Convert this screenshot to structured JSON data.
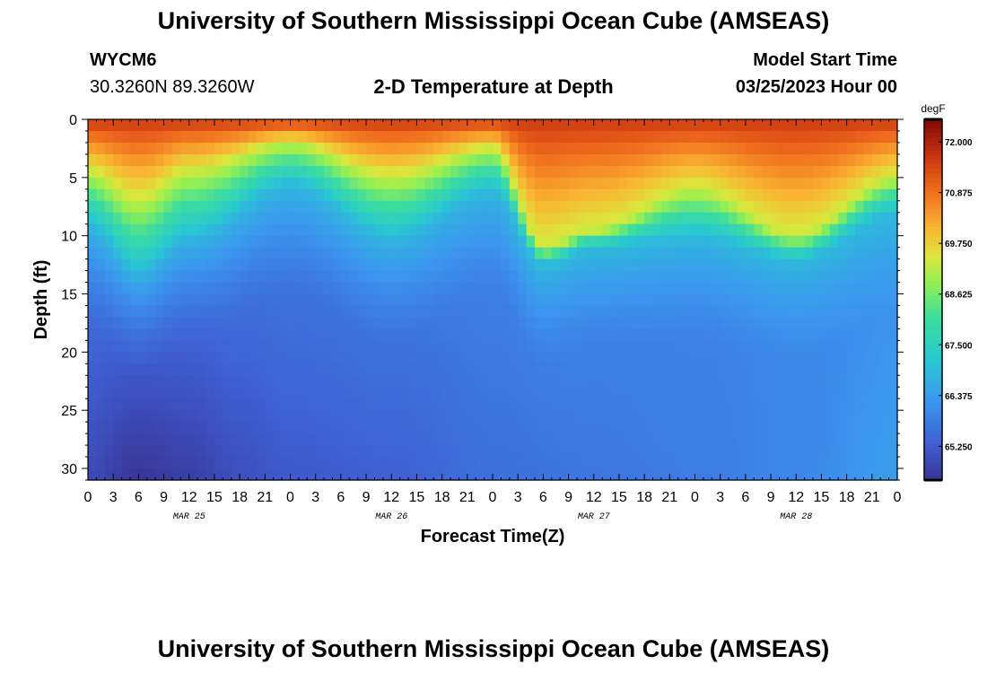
{
  "header": {
    "title": "University of Southern Mississippi Ocean Cube (AMSEAS)",
    "station_id": "WYCM6",
    "coordinates": "30.3260N  89.3260W",
    "plot_title": "2-D Temperature at Depth",
    "model_start_label": "Model Start Time",
    "model_start_value": "03/25/2023 Hour 00"
  },
  "footer": {
    "title": "University of Southern Mississippi Ocean Cube (AMSEAS)"
  },
  "colors": {
    "background": "#ffffff",
    "axis": "#000000"
  },
  "chart_data": {
    "type": "heatmap",
    "title": "2-D Temperature at Depth",
    "xlabel": "Forecast Time(Z)",
    "ylabel": "Depth (ft)",
    "x_range_hours": [
      0,
      96
    ],
    "x_tick_step_hours": 3,
    "x_tick_labels": [
      "0",
      "3",
      "6",
      "9",
      "12",
      "15",
      "18",
      "21",
      "0",
      "3",
      "6",
      "9",
      "12",
      "15",
      "18",
      "21",
      "0",
      "3",
      "6",
      "9",
      "12",
      "15",
      "18",
      "21",
      "0",
      "3",
      "6",
      "9",
      "12",
      "15",
      "18",
      "21",
      "0"
    ],
    "day_labels": [
      {
        "text": "MAR 25",
        "hour": 12
      },
      {
        "text": "MAR 26",
        "hour": 36
      },
      {
        "text": "MAR 27",
        "hour": 60
      },
      {
        "text": "MAR 28",
        "hour": 84
      }
    ],
    "y_range_ft": [
      0,
      31
    ],
    "y_ticks": [
      0,
      5,
      10,
      15,
      20,
      25,
      30
    ],
    "y_tick_labels": [
      "0",
      "5",
      "10",
      "15",
      "20",
      "25",
      "30"
    ],
    "colorbar": {
      "unit": "degF",
      "min": 64.5,
      "max": 72.5,
      "ticks": [
        72.0,
        70.875,
        69.75,
        68.625,
        67.5,
        66.375,
        65.25
      ],
      "tick_labels": [
        "72.000",
        "70.875",
        "69.750",
        "68.625",
        "67.500",
        "66.375",
        "65.250"
      ]
    },
    "thermocline_control": {
      "hours": [
        0,
        6,
        12,
        24,
        36,
        48,
        54,
        60,
        72,
        84,
        96
      ],
      "upper_warm_depth_ft": [
        4.5,
        7.0,
        4.5,
        2.0,
        5.0,
        2.5,
        11.0,
        9.5,
        6.0,
        10.0,
        5.0
      ],
      "mid_depth_ft": [
        9.0,
        13.0,
        10.0,
        5.5,
        10.0,
        6.0,
        12.5,
        11.0,
        10.0,
        12.0,
        8.0
      ]
    },
    "bottom_temperature_degF": {
      "hours": [
        0,
        6,
        12,
        18,
        24,
        36,
        48,
        60,
        72,
        84,
        96
      ],
      "values": [
        64.9,
        64.5,
        64.7,
        65.0,
        65.2,
        65.3,
        65.6,
        65.7,
        65.8,
        66.0,
        66.4
      ]
    }
  }
}
